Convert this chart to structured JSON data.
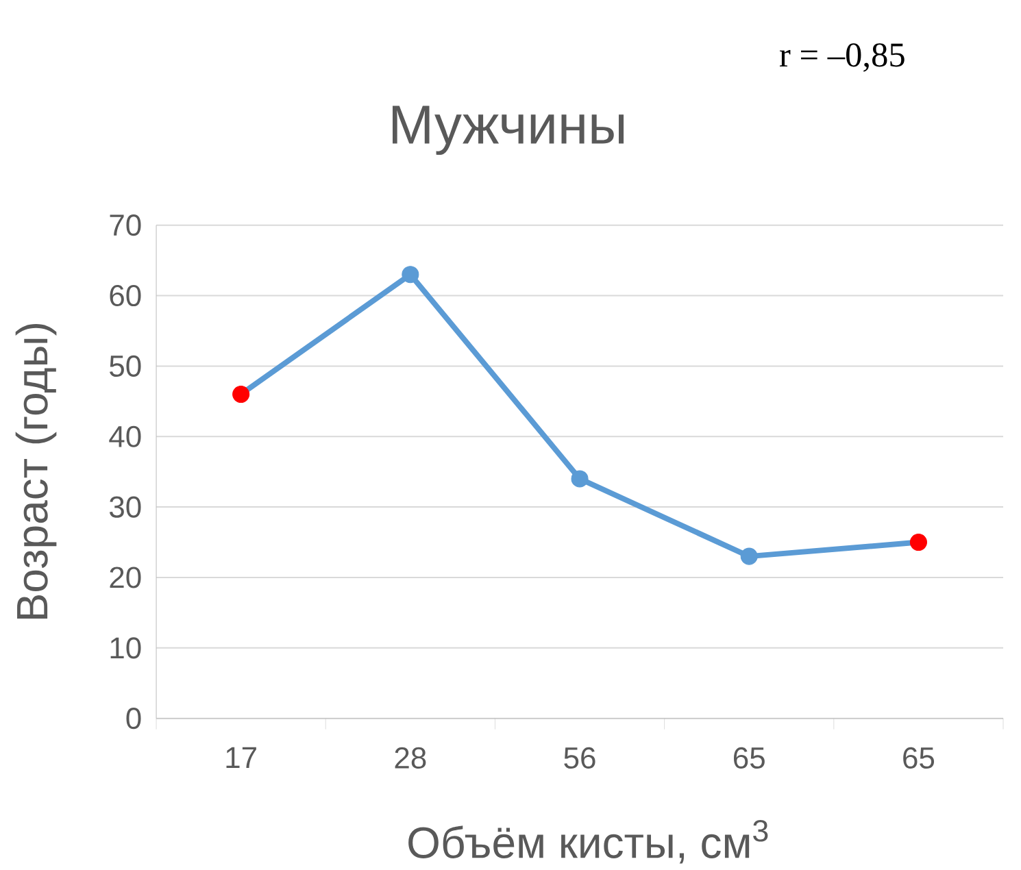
{
  "chart_data": {
    "type": "line",
    "title": "Мужчины",
    "xlabel": "Объём кисты, см$^{3}$",
    "ylabel": "Возраст (годы)",
    "annotations": [
      "r = –0,85"
    ],
    "categories": [
      "17",
      "28",
      "56",
      "65",
      "65"
    ],
    "series": [
      {
        "color": "#5b9bd5",
        "colors": [
          "#ff0000",
          "#5b9bd5",
          "#5b9bd5",
          "#5b9bd5",
          "#ff0000"
        ],
        "values": [
          46,
          63,
          34,
          23,
          25
        ]
      }
    ],
    "ylim": [
      0,
      70
    ],
    "yticks": [
      0,
      10,
      20,
      30,
      40,
      50,
      60,
      70
    ],
    "grid": "y",
    "marker": "circle",
    "line_style": "solid"
  }
}
